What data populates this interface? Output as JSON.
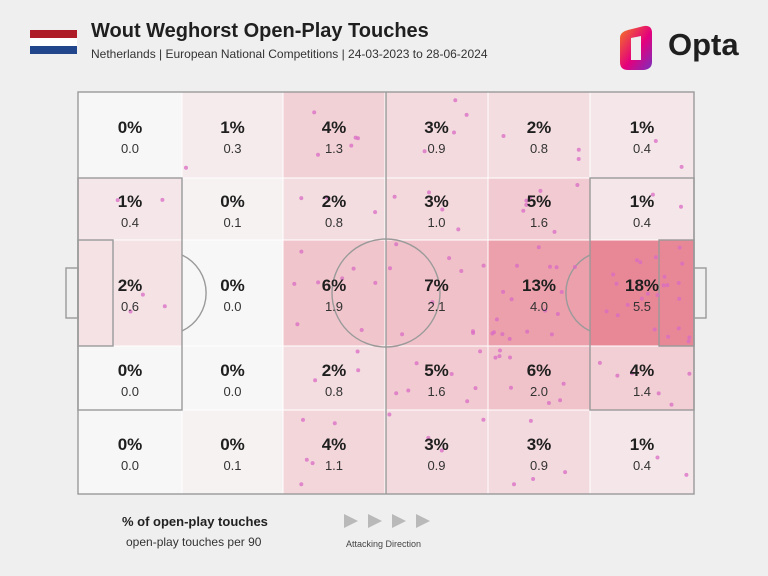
{
  "header": {
    "title": "Wout Weghorst Open-Play Touches",
    "subtitle": "Netherlands | European National Competitions | 24-03-2023 to 28-06-2024",
    "flag_colors": [
      "#AE1C28",
      "#FFFFFF",
      "#21468B"
    ]
  },
  "brand": {
    "name": "Opta",
    "logo_icon": "opta-logo-icon",
    "gradient_colors": [
      "#F47A20",
      "#E4007C",
      "#7B2FBE"
    ]
  },
  "pitch": {
    "line_color": "#9a9a9a",
    "zone_base_color": "#F7F7F7",
    "zone_heat_color": "#E88896",
    "grid": {
      "columns": 6,
      "rows": 5,
      "zones": [
        [
          {
            "pct": "0%",
            "per90": "0.0"
          },
          {
            "pct": "1%",
            "per90": "0.3"
          },
          {
            "pct": "4%",
            "per90": "1.3"
          },
          {
            "pct": "3%",
            "per90": "0.9"
          },
          {
            "pct": "2%",
            "per90": "0.8"
          },
          {
            "pct": "1%",
            "per90": "0.4"
          }
        ],
        [
          {
            "pct": "1%",
            "per90": "0.4"
          },
          {
            "pct": "0%",
            "per90": "0.1"
          },
          {
            "pct": "2%",
            "per90": "0.8"
          },
          {
            "pct": "3%",
            "per90": "1.0"
          },
          {
            "pct": "5%",
            "per90": "1.6"
          },
          {
            "pct": "1%",
            "per90": "0.4"
          }
        ],
        [
          {
            "pct": "2%",
            "per90": "0.6"
          },
          {
            "pct": "0%",
            "per90": "0.0"
          },
          {
            "pct": "6%",
            "per90": "1.9"
          },
          {
            "pct": "7%",
            "per90": "2.1"
          },
          {
            "pct": "13%",
            "per90": "4.0"
          },
          {
            "pct": "18%",
            "per90": "5.5"
          }
        ],
        [
          {
            "pct": "0%",
            "per90": "0.0"
          },
          {
            "pct": "0%",
            "per90": "0.0"
          },
          {
            "pct": "2%",
            "per90": "0.8"
          },
          {
            "pct": "5%",
            "per90": "1.6"
          },
          {
            "pct": "6%",
            "per90": "2.0"
          },
          {
            "pct": "4%",
            "per90": "1.4"
          }
        ],
        [
          {
            "pct": "0%",
            "per90": "0.0"
          },
          {
            "pct": "0%",
            "per90": "0.1"
          },
          {
            "pct": "4%",
            "per90": "1.1"
          },
          {
            "pct": "3%",
            "per90": "0.9"
          },
          {
            "pct": "3%",
            "per90": "0.9"
          },
          {
            "pct": "1%",
            "per90": "0.4"
          }
        ]
      ]
    },
    "dot_color": "#D96BC4"
  },
  "legend": {
    "primary": "% of open-play touches",
    "secondary": "open-play touches per 90",
    "direction_label": "Attacking Direction",
    "arrow_icon": "play-arrow-icon",
    "arrow_count": 4,
    "arrow_color": "#b9b9b9"
  }
}
